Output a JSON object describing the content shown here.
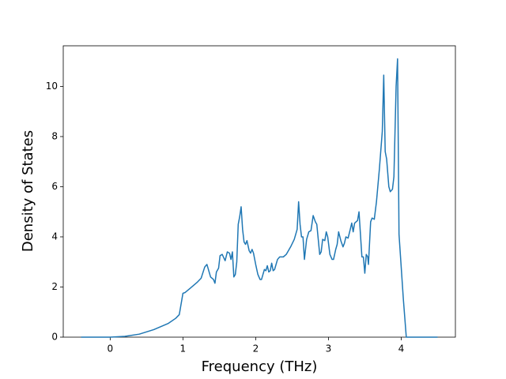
{
  "chart_data": {
    "type": "line",
    "x_label": "Frequency (THz)",
    "y_label": "Density of States",
    "color": "#1f77b4",
    "x": [
      -0.4,
      0,
      0.2,
      0.4,
      0.6,
      0.8,
      0.9,
      0.95,
      1.0,
      1.03,
      1.1,
      1.2,
      1.25,
      1.3,
      1.33,
      1.38,
      1.42,
      1.44,
      1.46,
      1.49,
      1.51,
      1.54,
      1.58,
      1.61,
      1.64,
      1.66,
      1.68,
      1.7,
      1.72,
      1.74,
      1.76,
      1.78,
      1.8,
      1.82,
      1.84,
      1.86,
      1.88,
      1.91,
      1.93,
      1.95,
      1.97,
      2.0,
      2.03,
      2.06,
      2.08,
      2.12,
      2.14,
      2.16,
      2.18,
      2.2,
      2.22,
      2.24,
      2.26,
      2.3,
      2.33,
      2.38,
      2.42,
      2.48,
      2.53,
      2.57,
      2.59,
      2.61,
      2.63,
      2.65,
      2.67,
      2.7,
      2.73,
      2.76,
      2.79,
      2.82,
      2.84,
      2.86,
      2.88,
      2.9,
      2.92,
      2.95,
      2.97,
      2.99,
      3.02,
      3.05,
      3.07,
      3.1,
      3.12,
      3.14,
      3.17,
      3.2,
      3.22,
      3.24,
      3.27,
      3.3,
      3.32,
      3.34,
      3.36,
      3.4,
      3.42,
      3.44,
      3.46,
      3.48,
      3.5,
      3.52,
      3.54,
      3.55,
      3.58,
      3.6,
      3.63,
      3.66,
      3.7,
      3.74,
      3.76,
      3.78,
      3.8,
      3.83,
      3.85,
      3.88,
      3.9,
      3.93,
      3.95,
      3.97,
      4.03,
      4.07,
      4.5
    ],
    "values": [
      0,
      0,
      0.03,
      0.12,
      0.3,
      0.55,
      0.75,
      0.9,
      1.75,
      1.78,
      1.95,
      2.2,
      2.35,
      2.8,
      2.9,
      2.4,
      2.3,
      2.15,
      2.6,
      2.75,
      3.25,
      3.3,
      3.05,
      3.4,
      3.35,
      3.1,
      3.4,
      2.4,
      2.5,
      3.0,
      4.5,
      4.8,
      5.2,
      4.3,
      3.8,
      3.7,
      3.85,
      3.45,
      3.35,
      3.5,
      3.35,
      2.9,
      2.5,
      2.3,
      2.3,
      2.7,
      2.65,
      2.85,
      2.6,
      2.65,
      2.95,
      2.65,
      2.7,
      3.1,
      3.2,
      3.2,
      3.3,
      3.6,
      3.9,
      4.3,
      5.4,
      4.5,
      4.0,
      4.0,
      3.1,
      3.9,
      4.2,
      4.25,
      4.85,
      4.6,
      4.5,
      3.9,
      3.3,
      3.4,
      3.9,
      3.85,
      4.2,
      4.0,
      3.3,
      3.1,
      3.1,
      3.5,
      3.7,
      4.2,
      3.85,
      3.6,
      3.75,
      4.0,
      3.95,
      4.3,
      4.55,
      4.2,
      4.55,
      4.65,
      5.0,
      4.1,
      3.2,
      3.2,
      2.55,
      3.3,
      3.2,
      2.9,
      4.6,
      4.75,
      4.7,
      5.4,
      6.7,
      8.2,
      10.45,
      7.4,
      7.1,
      6.0,
      5.8,
      5.9,
      6.4,
      10.0,
      11.1,
      4.1,
      1.5,
      0,
      0
    ],
    "xlim": [
      -0.645,
      4.745
    ],
    "ylim": [
      0,
      11.62
    ],
    "xticks": [
      0,
      1,
      2,
      3,
      4
    ],
    "yticks": [
      0,
      2,
      4,
      6,
      8,
      10
    ]
  }
}
